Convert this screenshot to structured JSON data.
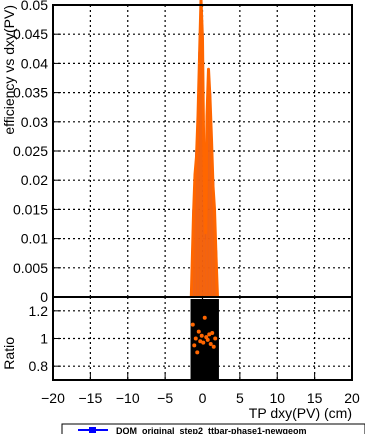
{
  "chart_data": [
    {
      "panel": "main",
      "type": "line",
      "xlabel": "TP dxy(PV) (cm)",
      "ylabel": "efficiency vs dxy(PV)",
      "xlim": [
        -20,
        20
      ],
      "ylim": [
        0,
        0.05
      ],
      "x_ticks": [
        "−20",
        "−15",
        "−10",
        "−5",
        "0",
        "5",
        "10",
        "15",
        "20"
      ],
      "y_ticks": [
        "0",
        "0.005",
        "0.01",
        "0.015",
        "0.02",
        "0.025",
        "0.03",
        "0.035",
        "0.04",
        "0.045",
        "0.05"
      ],
      "grid": true,
      "legend": {
        "position": "bottom",
        "entries": [
          "DQM_original_step2_ttbar-phase1-newgeom"
        ]
      },
      "series": [
        {
          "name": "DQM_original_step2_ttbar-phase1-newgeom",
          "color": "#0000ff",
          "x": [
            -1.5,
            -1.2,
            -1.0,
            -0.8,
            -0.6,
            -0.4,
            -0.2,
            0.0,
            0.2,
            0.4,
            0.6,
            0.8,
            1.0,
            1.2,
            1.4,
            1.6,
            1.8,
            2.0
          ],
          "y": [
            0.0,
            0.015,
            0.02,
            0.025,
            0.03,
            0.042,
            0.05,
            0.045,
            0.022,
            0.01,
            0.03,
            0.038,
            0.035,
            0.026,
            0.02,
            0.014,
            0.008,
            0.0
          ]
        },
        {
          "name": "",
          "color": "#ff6600",
          "x": [
            -1.5,
            -1.2,
            -1.0,
            -0.8,
            -0.6,
            -0.4,
            -0.2,
            0.0,
            0.2,
            0.4,
            0.6,
            0.8,
            1.0,
            1.2,
            1.4,
            1.6,
            1.8,
            2.0
          ],
          "y": [
            0.0,
            0.014,
            0.021,
            0.024,
            0.031,
            0.041,
            0.051,
            0.044,
            0.021,
            0.011,
            0.031,
            0.039,
            0.034,
            0.027,
            0.019,
            0.015,
            0.007,
            0.0
          ]
        }
      ]
    },
    {
      "panel": "ratio",
      "type": "scatter",
      "ylabel": "Ratio",
      "xlim": [
        -20,
        20
      ],
      "ylim": [
        0.7,
        1.3
      ],
      "y_ticks": [
        "0.8",
        "1",
        "1.2"
      ],
      "grid": true,
      "color": "#ff6600",
      "x": [
        -1.3,
        -1.1,
        -0.9,
        -0.7,
        -0.5,
        -0.3,
        -0.1,
        0.1,
        0.3,
        0.5,
        0.7,
        0.9,
        1.1,
        1.3,
        1.5,
        1.7
      ],
      "y": [
        1.1,
        0.95,
        1.0,
        0.9,
        1.05,
        0.98,
        1.02,
        0.97,
        1.15,
        1.01,
        0.99,
        1.03,
        0.96,
        1.04,
        0.94,
        1.0
      ]
    }
  ]
}
